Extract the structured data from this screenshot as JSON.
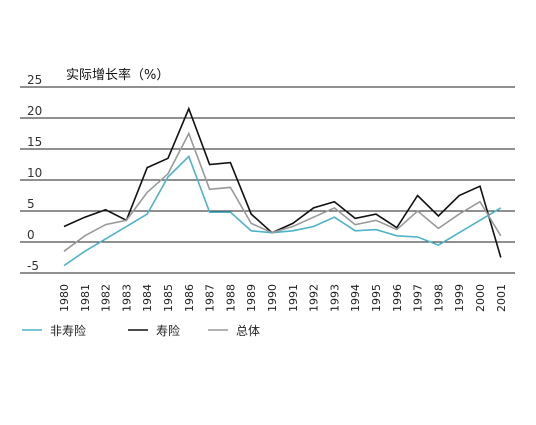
{
  "chart_data": {
    "type": "line",
    "ylabel": "实际增长率（%）",
    "ylim": [
      -5,
      25
    ],
    "yticks": [
      "25",
      "20",
      "15",
      "10",
      "5",
      "0",
      "-5"
    ],
    "x": [
      "1980",
      "1981",
      "1982",
      "1983",
      "1984",
      "1985",
      "1986",
      "1987",
      "1988",
      "1989",
      "1990",
      "1991",
      "1992",
      "1993",
      "1994",
      "1995",
      "1996",
      "1997",
      "1998",
      "1999",
      "2000",
      "2001"
    ],
    "grid": true,
    "legend_position": "bottom-left",
    "series": [
      {
        "name": "非寿险",
        "color": "#4db3c8",
        "values": [
          -3.8,
          -1.5,
          0.5,
          2.5,
          4.5,
          10.5,
          13.8,
          4.8,
          4.8,
          1.8,
          1.5,
          1.8,
          2.5,
          4.0,
          1.8,
          2.0,
          1.0,
          0.8,
          -0.5,
          1.5,
          3.5,
          5.5
        ]
      },
      {
        "name": "寿险",
        "color": "#111111",
        "values": [
          2.5,
          4.0,
          5.2,
          3.5,
          12.0,
          13.5,
          21.5,
          12.5,
          12.8,
          4.5,
          1.5,
          3.0,
          5.5,
          6.5,
          3.8,
          4.5,
          2.3,
          7.5,
          4.2,
          7.5,
          9.0,
          -2.5
        ]
      },
      {
        "name": "总体",
        "color": "#9a9a9a",
        "values": [
          -1.5,
          1.0,
          2.8,
          3.5,
          8.0,
          11.0,
          17.5,
          8.5,
          8.8,
          3.0,
          1.5,
          2.5,
          4.0,
          5.5,
          2.8,
          3.5,
          2.0,
          5.0,
          2.2,
          4.5,
          6.5,
          1.0
        ]
      }
    ]
  }
}
